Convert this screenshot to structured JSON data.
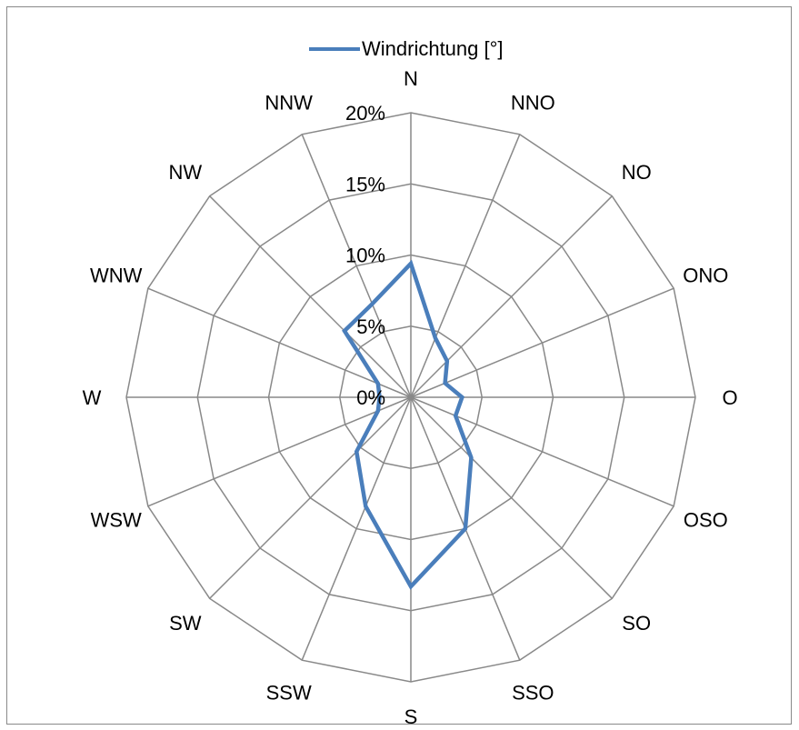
{
  "chart_data": {
    "type": "radar",
    "categories": [
      "N",
      "NNO",
      "NO",
      "ONO",
      "O",
      "OSO",
      "SO",
      "SSO",
      "S",
      "SSW",
      "SW",
      "WSW",
      "W",
      "WNW",
      "NW",
      "NNW"
    ],
    "series": [
      {
        "name": "Windrichtung [°]",
        "values": [
          9.4,
          4.5,
          3.6,
          2.6,
          3.6,
          3.4,
          6.0,
          10.0,
          13.3,
          8.3,
          5.4,
          2.5,
          2.2,
          2.5,
          6.6,
          7.1
        ]
      }
    ],
    "r_ticks": [
      {
        "value": 0,
        "label": "0%"
      },
      {
        "value": 5,
        "label": "5%"
      },
      {
        "value": 10,
        "label": "10%"
      },
      {
        "value": 15,
        "label": "15%"
      },
      {
        "value": 20,
        "label": "20%"
      }
    ],
    "r_range": [
      0,
      20
    ],
    "grid": true,
    "legend_position": "top",
    "colors": {
      "series": "#4a7ebb",
      "grid": "#898989",
      "border": "#898989"
    }
  }
}
